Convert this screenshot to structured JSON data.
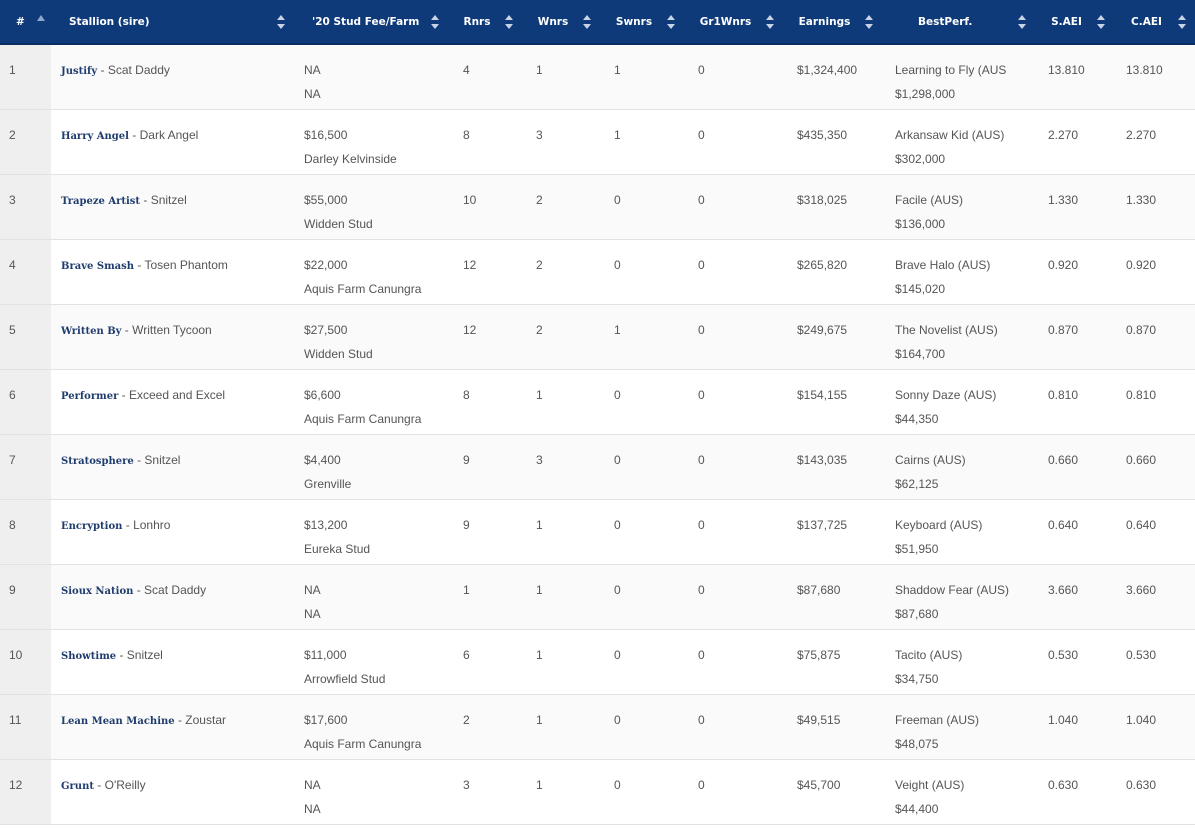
{
  "headers": {
    "rank": "#",
    "stallion": "Stallion (sire)",
    "fee": "'20 Stud Fee/Farm",
    "rnrs": "Rnrs",
    "wnrs": "Wnrs",
    "swnrs": "Swnrs",
    "gr1wnrs": "Gr1Wnrs",
    "earnings": "Earnings",
    "bestperf": "BestPerf.",
    "saei": "S.AEI",
    "caei": "C.AEI"
  },
  "colors": {
    "header_bg": "#0e3a7a",
    "stallion_link": "#1f3c6e"
  },
  "rows": [
    {
      "rank": "1",
      "stallion": "Justify",
      "sire": " - Scat Daddy",
      "fee": "NA",
      "farm": "NA",
      "rnrs": "4",
      "wnrs": "1",
      "swnrs": "1",
      "gr1wnrs": "0",
      "earnings": "$1,324,400",
      "best": "Learning to Fly (AUS",
      "best_earn": "$1,298,000",
      "saei": "13.810",
      "caei": "13.810"
    },
    {
      "rank": "2",
      "stallion": "Harry Angel",
      "sire": " - Dark Angel",
      "fee": "$16,500",
      "farm": "Darley Kelvinside",
      "rnrs": "8",
      "wnrs": "3",
      "swnrs": "1",
      "gr1wnrs": "0",
      "earnings": "$435,350",
      "best": "Arkansaw Kid (AUS)",
      "best_earn": "$302,000",
      "saei": "2.270",
      "caei": "2.270"
    },
    {
      "rank": "3",
      "stallion": "Trapeze Artist",
      "sire": " - Snitzel",
      "fee": "$55,000",
      "farm": "Widden Stud",
      "rnrs": "10",
      "wnrs": "2",
      "swnrs": "0",
      "gr1wnrs": "0",
      "earnings": "$318,025",
      "best": "Facile (AUS)",
      "best_earn": "$136,000",
      "saei": "1.330",
      "caei": "1.330"
    },
    {
      "rank": "4",
      "stallion": "Brave Smash",
      "sire": " - Tosen Phantom",
      "fee": "$22,000",
      "farm": "Aquis Farm Canungra",
      "rnrs": "12",
      "wnrs": "2",
      "swnrs": "0",
      "gr1wnrs": "0",
      "earnings": "$265,820",
      "best": "Brave Halo (AUS)",
      "best_earn": "$145,020",
      "saei": "0.920",
      "caei": "0.920"
    },
    {
      "rank": "5",
      "stallion": "Written By",
      "sire": " - Written Tycoon",
      "fee": "$27,500",
      "farm": "Widden Stud",
      "rnrs": "12",
      "wnrs": "2",
      "swnrs": "1",
      "gr1wnrs": "0",
      "earnings": "$249,675",
      "best": "The Novelist (AUS)",
      "best_earn": "$164,700",
      "saei": "0.870",
      "caei": "0.870"
    },
    {
      "rank": "6",
      "stallion": "Performer",
      "sire": " - Exceed and Excel",
      "fee": "$6,600",
      "farm": "Aquis Farm Canungra",
      "rnrs": "8",
      "wnrs": "1",
      "swnrs": "0",
      "gr1wnrs": "0",
      "earnings": "$154,155",
      "best": "Sonny Daze (AUS)",
      "best_earn": "$44,350",
      "saei": "0.810",
      "caei": "0.810"
    },
    {
      "rank": "7",
      "stallion": "Stratosphere",
      "sire": " - Snitzel",
      "fee": "$4,400",
      "farm": "Grenville",
      "rnrs": "9",
      "wnrs": "3",
      "swnrs": "0",
      "gr1wnrs": "0",
      "earnings": "$143,035",
      "best": "Cairns (AUS)",
      "best_earn": "$62,125",
      "saei": "0.660",
      "caei": "0.660"
    },
    {
      "rank": "8",
      "stallion": "Encryption",
      "sire": " - Lonhro",
      "fee": "$13,200",
      "farm": "Eureka Stud",
      "rnrs": "9",
      "wnrs": "1",
      "swnrs": "0",
      "gr1wnrs": "0",
      "earnings": "$137,725",
      "best": "Keyboard (AUS)",
      "best_earn": "$51,950",
      "saei": "0.640",
      "caei": "0.640"
    },
    {
      "rank": "9",
      "stallion": "Sioux Nation",
      "sire": " - Scat Daddy",
      "fee": "NA",
      "farm": "NA",
      "rnrs": "1",
      "wnrs": "1",
      "swnrs": "0",
      "gr1wnrs": "0",
      "earnings": "$87,680",
      "best": "Shaddow Fear (AUS)",
      "best_earn": "$87,680",
      "saei": "3.660",
      "caei": "3.660"
    },
    {
      "rank": "10",
      "stallion": "Showtime",
      "sire": " - Snitzel",
      "fee": "$11,000",
      "farm": "Arrowfield Stud",
      "rnrs": "6",
      "wnrs": "1",
      "swnrs": "0",
      "gr1wnrs": "0",
      "earnings": "$75,875",
      "best": "Tacito (AUS)",
      "best_earn": "$34,750",
      "saei": "0.530",
      "caei": "0.530"
    },
    {
      "rank": "11",
      "stallion": "Lean Mean Machine",
      "sire": " - Zoustar",
      "fee": "$17,600",
      "farm": "Aquis Farm Canungra",
      "rnrs": "2",
      "wnrs": "1",
      "swnrs": "0",
      "gr1wnrs": "0",
      "earnings": "$49,515",
      "best": "Freeman (AUS)",
      "best_earn": "$48,075",
      "saei": "1.040",
      "caei": "1.040"
    },
    {
      "rank": "12",
      "stallion": "Grunt",
      "sire": " - O'Reilly",
      "fee": "NA",
      "farm": "NA",
      "rnrs": "3",
      "wnrs": "1",
      "swnrs": "0",
      "gr1wnrs": "0",
      "earnings": "$45,700",
      "best": "Veight (AUS)",
      "best_earn": "$44,400",
      "saei": "0.630",
      "caei": "0.630"
    }
  ]
}
